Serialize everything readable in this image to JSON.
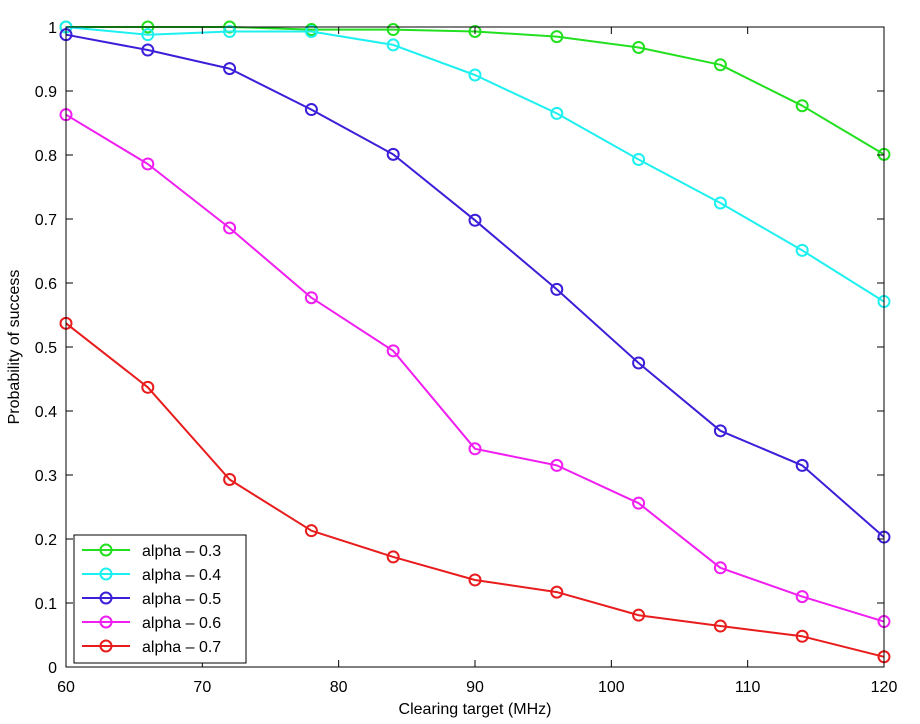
{
  "chart_data": {
    "type": "line",
    "title": "",
    "xlabel": "Clearing target (MHz)",
    "ylabel": "Probability of success",
    "xlim": [
      60,
      120
    ],
    "ylim": [
      0,
      1
    ],
    "grid": false,
    "legend_position": "bottom-left",
    "x": [
      60,
      66,
      72,
      78,
      84,
      90,
      96,
      102,
      108,
      114,
      120
    ],
    "x_ticks": [
      60,
      70,
      80,
      90,
      100,
      110,
      120
    ],
    "x_tick_labels": [
      "60",
      "70",
      "80",
      "90",
      "100",
      "110",
      "120"
    ],
    "y_ticks": [
      0,
      0.1,
      0.2,
      0.3,
      0.4,
      0.5,
      0.6,
      0.7,
      0.8,
      0.9,
      1
    ],
    "y_tick_labels": [
      "0",
      "0.1",
      "0.2",
      "0.3",
      "0.4",
      "0.5",
      "0.6",
      "0.7",
      "0.8",
      "0.9",
      "1"
    ],
    "series": [
      {
        "name": "alpha – 0.3",
        "color": "#22e01f",
        "values": [
          1.0,
          1.0,
          1.0,
          0.996,
          0.996,
          0.993,
          0.985,
          0.968,
          0.941,
          0.877,
          0.801
        ]
      },
      {
        "name": "alpha – 0.4",
        "color": "#1ef0f0",
        "values": [
          1.0,
          0.988,
          0.993,
          0.993,
          0.972,
          0.925,
          0.865,
          0.793,
          0.725,
          0.651,
          0.571
        ]
      },
      {
        "name": "alpha – 0.5",
        "color": "#3b1fd9",
        "values": [
          0.988,
          0.964,
          0.935,
          0.871,
          0.801,
          0.698,
          0.59,
          0.475,
          0.369,
          0.315,
          0.203
        ]
      },
      {
        "name": "alpha – 0.6",
        "color": "#f01ef0",
        "values": [
          0.863,
          0.786,
          0.686,
          0.577,
          0.494,
          0.341,
          0.315,
          0.256,
          0.155,
          0.11,
          0.071
        ]
      },
      {
        "name": "alpha – 0.7",
        "color": "#e81c1c",
        "values": [
          0.537,
          0.437,
          0.293,
          0.213,
          0.172,
          0.136,
          0.117,
          0.081,
          0.064,
          0.048,
          0.016
        ]
      }
    ]
  }
}
